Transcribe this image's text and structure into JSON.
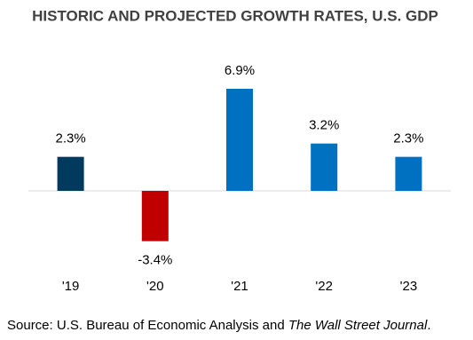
{
  "chart_data": {
    "type": "bar",
    "title": "HISTORIC AND PROJECTED GROWTH RATES, U.S. GDP",
    "categories": [
      "'19",
      "'20",
      "'21",
      "'22",
      "'23"
    ],
    "values": [
      2.3,
      -3.4,
      6.9,
      3.2,
      2.3
    ],
    "value_labels": [
      "2.3%",
      "-3.4%",
      "6.9%",
      "3.2%",
      "2.3%"
    ],
    "colors": [
      "#003a5d",
      "#c00000",
      "#0070c0",
      "#0070c0",
      "#0070c0"
    ],
    "source": [
      "Source: U.S. Bureau of Economic Analysis and ",
      "The Wall Street Journal",
      "."
    ]
  }
}
